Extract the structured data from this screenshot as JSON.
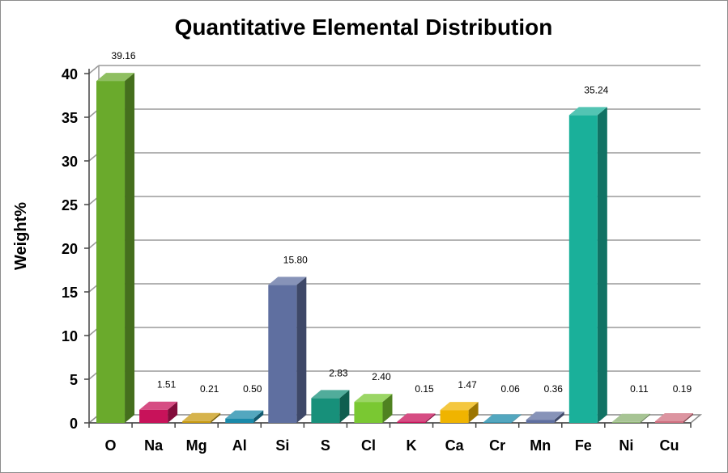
{
  "chart_data": {
    "type": "bar",
    "title": "Quantitative Elemental Distribution",
    "xlabel": "",
    "ylabel": "Weight%",
    "ylim": [
      0,
      40
    ],
    "yticks": [
      "0",
      "5",
      "10",
      "15",
      "20",
      "25",
      "30",
      "35",
      "40"
    ],
    "grid": true,
    "legend": "none",
    "categories": [
      "O",
      "Na",
      "Mg",
      "Al",
      "Si",
      "S",
      "Cl",
      "K",
      "Ca",
      "Cr",
      "Mn",
      "Fe",
      "Ni",
      "Cu"
    ],
    "values": [
      39.16,
      1.51,
      0.21,
      0.5,
      15.8,
      2.83,
      2.4,
      0.15,
      1.47,
      0.06,
      0.36,
      35.24,
      0.11,
      0.19
    ],
    "value_labels": [
      "39.16",
      "1.51",
      "0.21",
      "0.50",
      "15.80",
      "2.83",
      "2.40",
      "0.15",
      "1.47",
      "0.06",
      "0.36",
      "35.24",
      "0.11",
      "0.19"
    ],
    "colors": [
      "#6aaa2c",
      "#c8125a",
      "#c89a10",
      "#1a8aaa",
      "#5f6fa0",
      "#17907a",
      "#7ac832",
      "#c8125a",
      "#f0b400",
      "#1a8aaa",
      "#5f6fa0",
      "#1ab09a",
      "#8ab070",
      "#d07080"
    ]
  }
}
